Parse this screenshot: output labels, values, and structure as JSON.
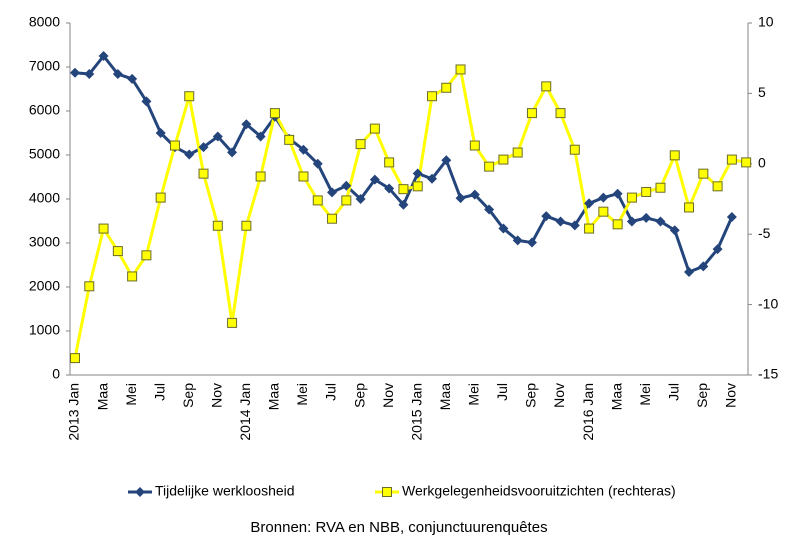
{
  "chart_data": {
    "type": "line",
    "categories": [
      "2013 Jan",
      null,
      "Maa",
      null,
      "Mei",
      null,
      "Jul",
      null,
      "Sep",
      null,
      "Nov",
      null,
      "2014 Jan",
      null,
      "Maa",
      null,
      "Mei",
      null,
      "Jul",
      null,
      "Sep",
      null,
      "Nov",
      null,
      "2015 Jan",
      null,
      "Maa",
      null,
      "Mei",
      null,
      "Jul",
      null,
      "Sep",
      null,
      "Nov",
      null,
      "2016 Jan",
      null,
      "Maa",
      null,
      "Mei",
      null,
      "Jul",
      null,
      "Sep",
      null,
      "Nov",
      null
    ],
    "series": [
      {
        "name": "Tijdelijke werkloosheid",
        "color": "#24457b",
        "axis": "y",
        "values": [
          6870,
          6840,
          7250,
          6840,
          6730,
          6220,
          5500,
          5180,
          5010,
          5180,
          5420,
          5060,
          5700,
          5420,
          5870,
          5370,
          5120,
          4800,
          4150,
          4300,
          4000,
          4440,
          4240,
          3870,
          4580,
          4460,
          4880,
          4020,
          4100,
          3760,
          3330,
          3060,
          3010,
          3610,
          3490,
          3400,
          3900,
          4030,
          4120,
          3490,
          3570,
          3490,
          3290,
          2340,
          2470,
          2860,
          3590,
          null
        ]
      },
      {
        "name": "Werkgelegenheidsvooruitzichten (rechteras)",
        "color": "#ffff00",
        "axis": "y2",
        "values": [
          -13.8,
          -8.7,
          -4.6,
          -6.2,
          -8.0,
          -6.5,
          -2.4,
          1.3,
          4.8,
          -0.7,
          -4.4,
          -11.3,
          -4.4,
          -0.9,
          3.6,
          1.7,
          -0.9,
          -2.6,
          -3.9,
          -2.6,
          1.4,
          2.5,
          0.1,
          -1.8,
          -1.6,
          4.8,
          5.4,
          6.7,
          1.3,
          -0.2,
          0.3,
          0.8,
          3.6,
          5.5,
          3.6,
          1.0,
          -4.6,
          -3.4,
          -4.3,
          -2.4,
          -2.0,
          -1.7,
          0.6,
          -3.1,
          -0.7,
          -1.6,
          0.3,
          0.1
        ]
      }
    ],
    "ylim": [
      0,
      8000
    ],
    "yticks": [
      0,
      1000,
      2000,
      3000,
      4000,
      5000,
      6000,
      7000,
      8000
    ],
    "y2lim": [
      -15,
      10
    ],
    "y2ticks": [
      -15,
      -10,
      -5,
      0,
      5,
      10
    ],
    "grid": false,
    "source": "Bronnen: RVA en NBB, conjunctuurenquêtes"
  }
}
